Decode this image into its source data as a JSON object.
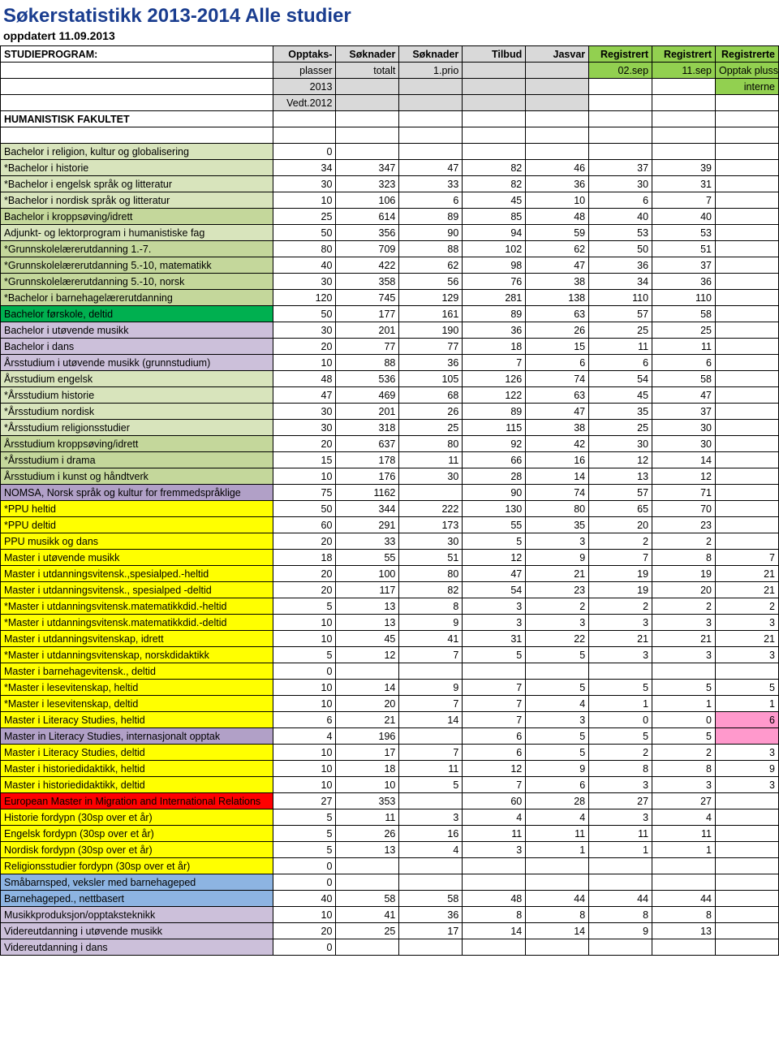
{
  "title": "Søkerstatistikk 2013-2014  Alle studier",
  "subtitle": "oppdatert 11.09.2013",
  "header": {
    "r1": [
      "STUDIEPROGRAM:",
      "Opptaks-",
      "Søknader",
      "Søknader",
      "Tilbud",
      "Jasvar",
      "Registrert",
      "Registrert",
      "Registrerte"
    ],
    "r2": [
      "",
      "plasser",
      "totalt",
      "1.prio",
      "",
      "",
      "02.sep",
      "11.sep",
      "Opptak pluss"
    ],
    "r3": [
      "",
      "2013",
      "",
      "",
      "",
      "",
      "",
      "",
      "interne"
    ],
    "r4": [
      "",
      "Vedt.2012",
      "",
      "",
      "",
      "",
      "",
      "",
      ""
    ]
  },
  "section": "HUMANISTISK FAKULTET",
  "colors": {
    "lightgreen": "#d8e4bc",
    "medgreen": "#c4d79b",
    "green2": "#b8cce4",
    "brightgreen": "#00b050",
    "lavender": "#ccc0da",
    "purple": "#b1a0c7",
    "yellow": "#ffff00",
    "brown": "#c4bd97",
    "pink": "#ff99cc",
    "blue": "#8db4e2",
    "salmon": "#fac090",
    "red": "#ff0000",
    "teal": "#76933c",
    "gray": "#d9d9d9"
  },
  "rows": [
    {
      "label": "Bachelor i religion, kultur og globalisering",
      "c": "#d8e4bc",
      "v": [
        "0",
        "",
        "",
        "",
        "",
        "",
        "",
        ""
      ]
    },
    {
      "label": "*Bachelor i historie",
      "c": "#d8e4bc",
      "v": [
        "34",
        "347",
        "47",
        "82",
        "46",
        "37",
        "39",
        ""
      ]
    },
    {
      "label": "*Bachelor i engelsk språk og litteratur",
      "c": "#d8e4bc",
      "v": [
        "30",
        "323",
        "33",
        "82",
        "36",
        "30",
        "31",
        ""
      ]
    },
    {
      "label": "*Bachelor i nordisk språk og litteratur",
      "c": "#d8e4bc",
      "v": [
        "10",
        "106",
        "6",
        "45",
        "10",
        "6",
        "7",
        ""
      ]
    },
    {
      "label": "Bachelor i kroppsøving/idrett",
      "c": "#c4d79b",
      "v": [
        "25",
        "614",
        "89",
        "85",
        "48",
        "40",
        "40",
        ""
      ]
    },
    {
      "label": "Adjunkt- og lektorprogram i humanistiske fag",
      "c": "#d8e4bc",
      "v": [
        "50",
        "356",
        "90",
        "94",
        "59",
        "53",
        "53",
        ""
      ]
    },
    {
      "label": "*Grunnskolelærerutdanning 1.-7.",
      "c": "#c4d79b",
      "v": [
        "80",
        "709",
        "88",
        "102",
        "62",
        "50",
        "51",
        ""
      ]
    },
    {
      "label": "*Grunnskolelærerutdanning 5.-10, matematikk",
      "c": "#c4d79b",
      "v": [
        "40",
        "422",
        "62",
        "98",
        "47",
        "36",
        "37",
        ""
      ]
    },
    {
      "label": "*Grunnskolelærerutdanning 5.-10, norsk",
      "c": "#c4d79b",
      "v": [
        "30",
        "358",
        "56",
        "76",
        "38",
        "34",
        "36",
        ""
      ]
    },
    {
      "label": "*Bachelor i barnehagelærerutdanning",
      "c": "#c4d79b",
      "v": [
        "120",
        "745",
        "129",
        "281",
        "138",
        "110",
        "110",
        ""
      ]
    },
    {
      "label": "Bachelor førskole, deltid",
      "c": "#00b050",
      "v": [
        "50",
        "177",
        "161",
        "89",
        "63",
        "57",
        "58",
        ""
      ]
    },
    {
      "label": "Bachelor i utøvende musikk",
      "c": "#ccc0da",
      "v": [
        "30",
        "201",
        "190",
        "36",
        "26",
        "25",
        "25",
        ""
      ]
    },
    {
      "label": "Bachelor i dans",
      "c": "#ccc0da",
      "v": [
        "20",
        "77",
        "77",
        "18",
        "15",
        "11",
        "11",
        ""
      ]
    },
    {
      "label": "Årsstudium i utøvende musikk (grunnstudium)",
      "c": "#ccc0da",
      "v": [
        "10",
        "88",
        "36",
        "7",
        "6",
        "6",
        "6",
        ""
      ]
    },
    {
      "label": "Årsstudium engelsk",
      "c": "#d8e4bc",
      "v": [
        "48",
        "536",
        "105",
        "126",
        "74",
        "54",
        "58",
        ""
      ]
    },
    {
      "label": "*Årsstudium historie",
      "c": "#d8e4bc",
      "v": [
        "47",
        "469",
        "68",
        "122",
        "63",
        "45",
        "47",
        ""
      ]
    },
    {
      "label": "*Årsstudium nordisk",
      "c": "#d8e4bc",
      "v": [
        "30",
        "201",
        "26",
        "89",
        "47",
        "35",
        "37",
        ""
      ]
    },
    {
      "label": "*Årsstudium religionsstudier",
      "c": "#d8e4bc",
      "v": [
        "30",
        "318",
        "25",
        "115",
        "38",
        "25",
        "30",
        ""
      ]
    },
    {
      "label": "Årsstudium kroppsøving/idrett",
      "c": "#c4d79b",
      "v": [
        "20",
        "637",
        "80",
        "92",
        "42",
        "30",
        "30",
        ""
      ]
    },
    {
      "label": "*Årsstudium i drama",
      "c": "#c4d79b",
      "v": [
        "15",
        "178",
        "11",
        "66",
        "16",
        "12",
        "14",
        ""
      ]
    },
    {
      "label": "Årsstudium i kunst og håndtverk",
      "c": "#c4d79b",
      "v": [
        "10",
        "176",
        "30",
        "28",
        "14",
        "13",
        "12",
        ""
      ]
    },
    {
      "label": "NOMSA, Norsk språk og kultur for fremmedspråklige",
      "c": "#b1a0c7",
      "v": [
        "75",
        "1162",
        "",
        "90",
        "74",
        "57",
        "71",
        ""
      ]
    },
    {
      "label": "*PPU heltid",
      "c": "#ffff00",
      "v": [
        "50",
        "344",
        "222",
        "130",
        "80",
        "65",
        "70",
        ""
      ]
    },
    {
      "label": "*PPU deltid",
      "c": "#ffff00",
      "v": [
        "60",
        "291",
        "173",
        "55",
        "35",
        "20",
        "23",
        ""
      ]
    },
    {
      "label": "PPU musikk og dans",
      "c": "#ffff00",
      "v": [
        "20",
        "33",
        "30",
        "5",
        "3",
        "2",
        "2",
        ""
      ]
    },
    {
      "label": "Master i utøvende musikk",
      "c": "#ffff00",
      "v": [
        "18",
        "55",
        "51",
        "12",
        "9",
        "7",
        "8",
        "7"
      ]
    },
    {
      "label": "Master i utdanningsvitensk.,spesialped.-heltid",
      "c": "#ffff00",
      "v": [
        "20",
        "100",
        "80",
        "47",
        "21",
        "19",
        "19",
        "21"
      ]
    },
    {
      "label": "Master i utdanningsvitensk., spesialped -deltid",
      "c": "#ffff00",
      "v": [
        "20",
        "117",
        "82",
        "54",
        "23",
        "19",
        "20",
        "21"
      ]
    },
    {
      "label": "*Master i utdanningsvitensk.matematikkdid.-heltid",
      "c": "#ffff00",
      "v": [
        "5",
        "13",
        "8",
        "3",
        "2",
        "2",
        "2",
        "2"
      ]
    },
    {
      "label": "*Master i utdanningsvitensk.matematikkdid.-deltid",
      "c": "#ffff00",
      "v": [
        "10",
        "13",
        "9",
        "3",
        "3",
        "3",
        "3",
        "3"
      ]
    },
    {
      "label": "Master i utdanningsvitenskap, idrett",
      "c": "#ffff00",
      "v": [
        "10",
        "45",
        "41",
        "31",
        "22",
        "21",
        "21",
        "21"
      ]
    },
    {
      "label": "*Master i utdanningsvitenskap, norskdidaktikk",
      "c": "#ffff00",
      "v": [
        "5",
        "12",
        "7",
        "5",
        "5",
        "3",
        "3",
        "3"
      ]
    },
    {
      "label": "Master i barnehagevitensk., deltid",
      "c": "#ffff00",
      "v": [
        "0",
        "",
        "",
        "",
        "",
        "",
        "",
        ""
      ]
    },
    {
      "label": "*Master i lesevitenskap, heltid",
      "c": "#ffff00",
      "v": [
        "10",
        "14",
        "9",
        "7",
        "5",
        "5",
        "5",
        "5"
      ]
    },
    {
      "label": "*Master i lesevitenskap, deltid",
      "c": "#ffff00",
      "v": [
        "10",
        "20",
        "7",
        "7",
        "4",
        "1",
        "1",
        "1"
      ]
    },
    {
      "label": "Master i Literacy Studies, heltid",
      "c": "#ffff00",
      "v": [
        "6",
        "21",
        "14",
        "7",
        "3",
        "0",
        "0",
        "6"
      ],
      "lastbg": "#ff99cc"
    },
    {
      "label": "Master in Literacy Studies, internasjonalt opptak",
      "c": "#b1a0c7",
      "v": [
        "4",
        "196",
        "",
        "6",
        "5",
        "5",
        "5",
        ""
      ],
      "lastbg": "#ff99cc"
    },
    {
      "label": "Master i Literacy Studies, deltid",
      "c": "#ffff00",
      "v": [
        "10",
        "17",
        "7",
        "6",
        "5",
        "2",
        "2",
        "3"
      ]
    },
    {
      "label": "Master i historiedidaktikk, heltid",
      "c": "#ffff00",
      "v": [
        "10",
        "18",
        "11",
        "12",
        "9",
        "8",
        "8",
        "9"
      ]
    },
    {
      "label": "Master i historiedidaktikk, deltid",
      "c": "#ffff00",
      "v": [
        "10",
        "10",
        "5",
        "7",
        "6",
        "3",
        "3",
        "3"
      ]
    },
    {
      "label": "European Master in Migration and International Relations",
      "c": "#ff0000",
      "v": [
        "27",
        "353",
        "",
        "60",
        "28",
        "27",
        "27",
        ""
      ]
    },
    {
      "label": "Historie fordypn (30sp over et år)",
      "c": "#ffff00",
      "v": [
        "5",
        "11",
        "3",
        "4",
        "4",
        "3",
        "4",
        ""
      ]
    },
    {
      "label": "Engelsk fordypn (30sp over et år)",
      "c": "#ffff00",
      "v": [
        "5",
        "26",
        "16",
        "11",
        "11",
        "11",
        "11",
        ""
      ]
    },
    {
      "label": "Nordisk fordypn (30sp over et år)",
      "c": "#ffff00",
      "v": [
        "5",
        "13",
        "4",
        "3",
        "1",
        "1",
        "1",
        ""
      ]
    },
    {
      "label": "Religionsstudier fordypn (30sp over et år)",
      "c": "#ffff00",
      "v": [
        "0",
        "",
        "",
        "",
        "",
        "",
        "",
        ""
      ]
    },
    {
      "label": "Småbarnsped, veksler med barnehageped",
      "c": "#8db4e2",
      "v": [
        "0",
        "",
        "",
        "",
        "",
        "",
        "",
        ""
      ]
    },
    {
      "label": "Barnehageped., nettbasert",
      "c": "#8db4e2",
      "v": [
        "40",
        "58",
        "58",
        "48",
        "44",
        "44",
        "44",
        ""
      ]
    },
    {
      "label": "Musikkproduksjon/opptaksteknikk",
      "c": "#ccc0da",
      "v": [
        "10",
        "41",
        "36",
        "8",
        "8",
        "8",
        "8",
        ""
      ]
    },
    {
      "label": "Videreutdanning i utøvende musikk",
      "c": "#ccc0da",
      "v": [
        "20",
        "25",
        "17",
        "14",
        "14",
        "9",
        "13",
        ""
      ]
    },
    {
      "label": "Videreutdanning i dans",
      "c": "#ccc0da",
      "v": [
        "0",
        "",
        "",
        "",
        "",
        "",
        "",
        ""
      ]
    }
  ]
}
